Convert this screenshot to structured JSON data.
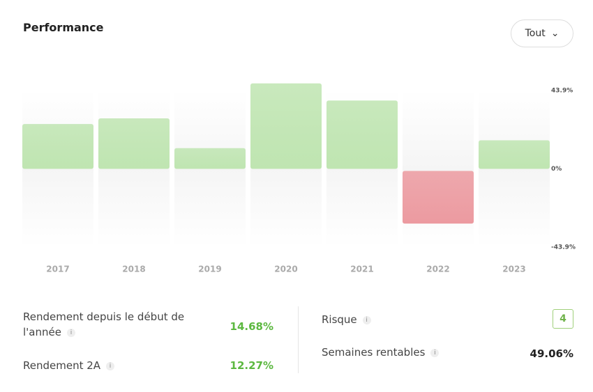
{
  "header": {
    "title": "Performance",
    "button": "Tout"
  },
  "chart_data": {
    "type": "bar",
    "categories": [
      "2017",
      "2018",
      "2019",
      "2020",
      "2021",
      "2022",
      "2023"
    ],
    "values": [
      25.1,
      28.3,
      11.6,
      47.9,
      38.3,
      -30.7,
      16.0
    ],
    "positive_color": "#bfe5b1",
    "negative_color": "#ec9aa0",
    "ylim": [
      -43.9,
      43.9
    ],
    "yticks": [
      {
        "value": -43.9,
        "label": "-43.9%"
      },
      {
        "value": 0,
        "label": "0%"
      },
      {
        "value": 43.9,
        "label": "43.9%"
      }
    ]
  },
  "stats": {
    "left": [
      {
        "label": "Rendement depuis le début de l'année",
        "value": "14.68%"
      },
      {
        "label": "Rendement 2A",
        "value": "12.27%"
      }
    ],
    "right": [
      {
        "label": "Risque",
        "value": "4"
      },
      {
        "label": "Semaines rentables",
        "value": "49.06%"
      }
    ]
  }
}
